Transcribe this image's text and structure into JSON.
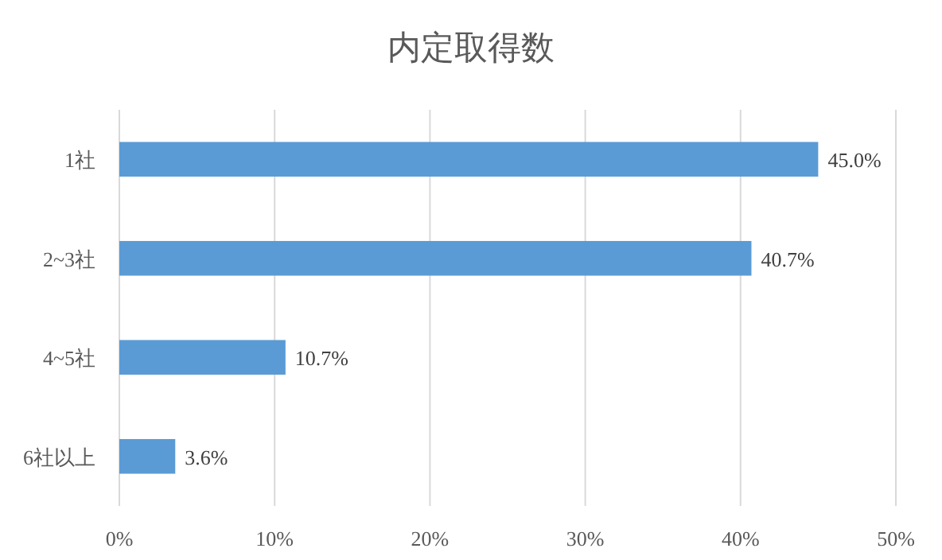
{
  "chart_data": {
    "type": "bar",
    "orientation": "horizontal",
    "title": "内定取得数",
    "categories": [
      "1社",
      "2~3社",
      "4~5社",
      "6社以上"
    ],
    "values": [
      45.0,
      40.7,
      10.7,
      3.6
    ],
    "color": "#5b9bd5",
    "value_labels": [
      "45.0%",
      "40.7%",
      "10.7%",
      "3.6%"
    ],
    "xlim": [
      0,
      50
    ],
    "xticks": [
      {
        "value": 0,
        "label": "0%"
      },
      {
        "value": 10,
        "label": "10%"
      },
      {
        "value": 20,
        "label": "20%"
      },
      {
        "value": 30,
        "label": "30%"
      },
      {
        "value": 40,
        "label": "40%"
      },
      {
        "value": 50,
        "label": "50%"
      }
    ],
    "grid": "x"
  }
}
